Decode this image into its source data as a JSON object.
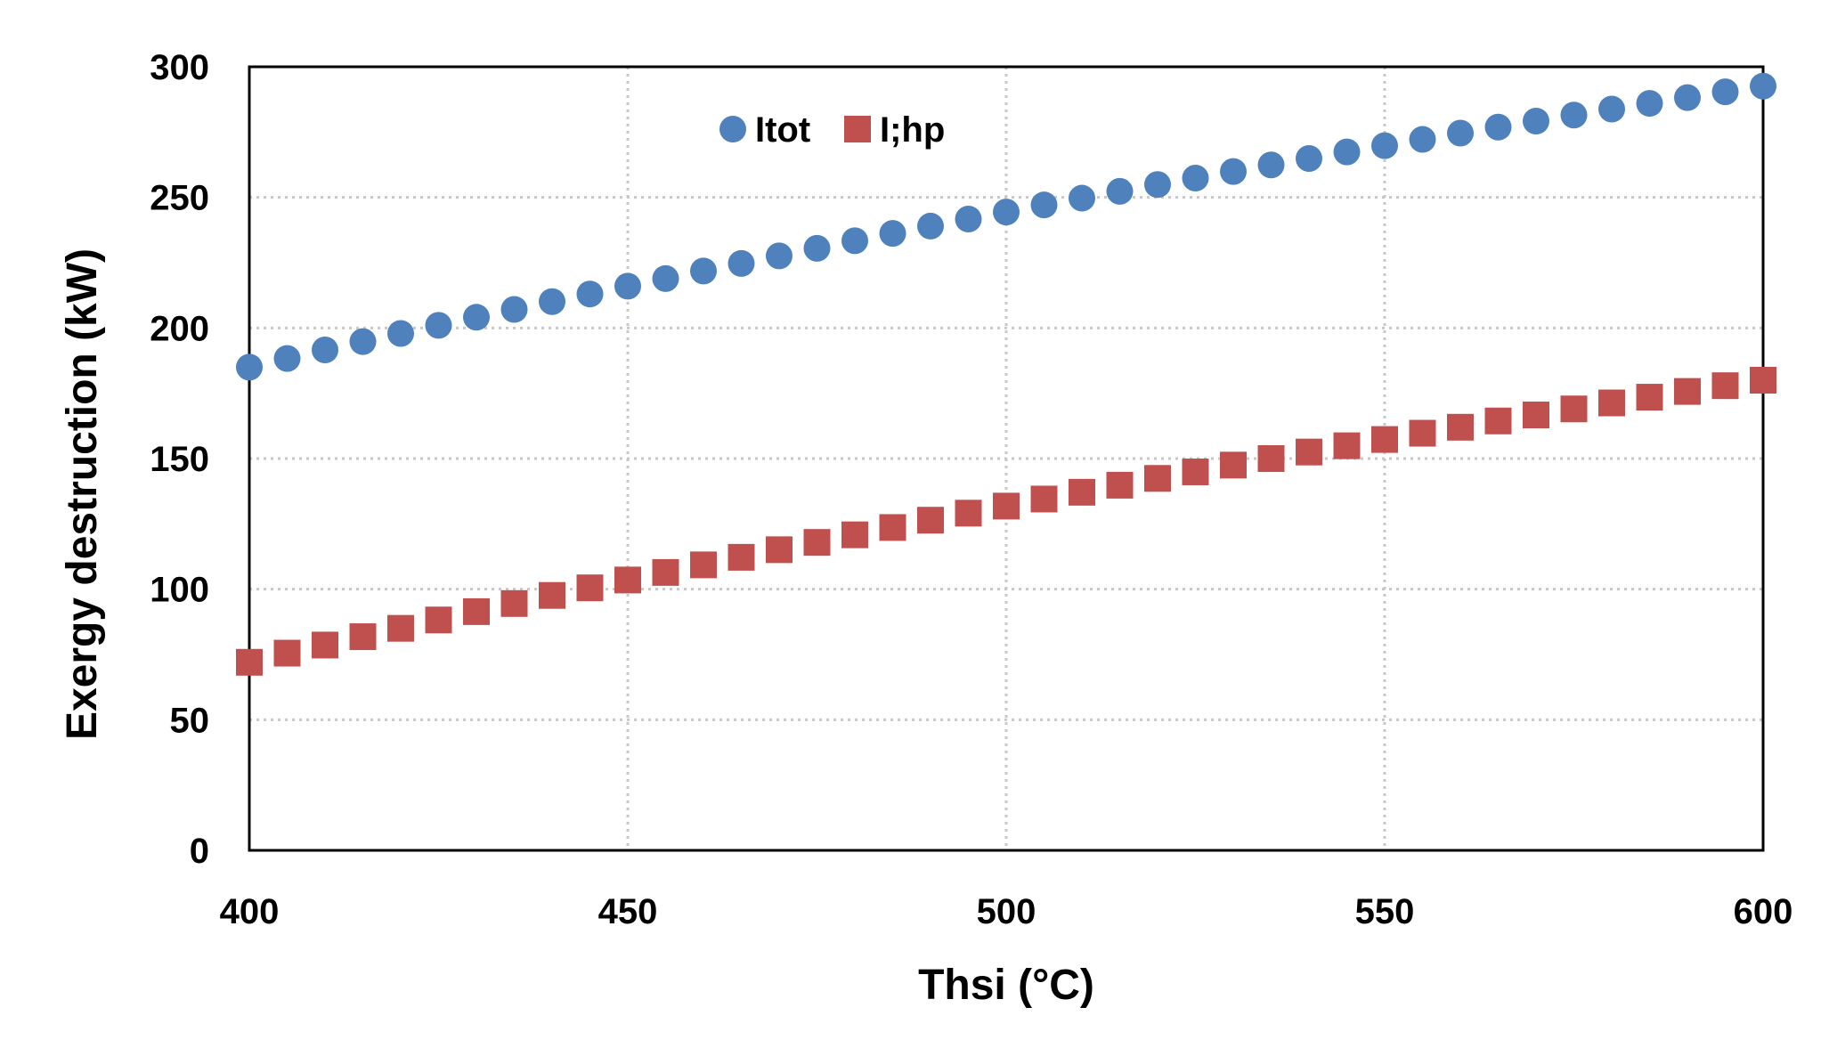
{
  "chart_data": {
    "type": "scatter",
    "title": "",
    "xlabel": "Thsi (°C)",
    "ylabel": "Exergy destruction (kW)",
    "xlim": [
      400,
      600
    ],
    "ylim": [
      0,
      300
    ],
    "xticks": [
      "400",
      "450",
      "500",
      "550",
      "600"
    ],
    "yticks": [
      "0",
      "50",
      "100",
      "150",
      "200",
      "250",
      "300"
    ],
    "grid": true,
    "legend_position": "top-center",
    "x": [
      400,
      405,
      410,
      415,
      420,
      425,
      430,
      435,
      440,
      445,
      450,
      455,
      460,
      465,
      470,
      475,
      480,
      485,
      490,
      495,
      500,
      505,
      510,
      515,
      520,
      525,
      530,
      535,
      540,
      545,
      550,
      555,
      560,
      565,
      570,
      575,
      580,
      585,
      590,
      595,
      600
    ],
    "series": [
      {
        "name": "Itot",
        "marker": "circle",
        "color": "#4F81BD",
        "values": [
          185.0,
          188.3,
          191.6,
          194.8,
          197.9,
          201.0,
          204.1,
          207.1,
          210.1,
          213.0,
          216.0,
          218.9,
          221.8,
          224.7,
          227.6,
          230.5,
          233.4,
          236.2,
          239.0,
          241.7,
          244.4,
          247.1,
          249.7,
          252.3,
          254.9,
          257.4,
          259.9,
          262.4,
          264.9,
          267.4,
          269.8,
          272.2,
          274.6,
          276.9,
          279.2,
          281.5,
          283.8,
          286.0,
          288.2,
          290.4,
          292.6
        ]
      },
      {
        "name": "I;hp",
        "marker": "square",
        "color": "#C0504D",
        "values": [
          72.0,
          75.5,
          78.6,
          81.8,
          85.0,
          88.2,
          91.4,
          94.5,
          97.6,
          100.5,
          103.5,
          106.4,
          109.3,
          112.2,
          115.1,
          117.9,
          120.8,
          123.6,
          126.4,
          129.1,
          131.8,
          134.5,
          137.1,
          139.8,
          142.4,
          144.9,
          147.5,
          150.0,
          152.5,
          154.9,
          157.3,
          159.7,
          162.0,
          164.4,
          166.7,
          169.0,
          171.3,
          173.5,
          175.7,
          177.9,
          180.0
        ]
      }
    ]
  }
}
